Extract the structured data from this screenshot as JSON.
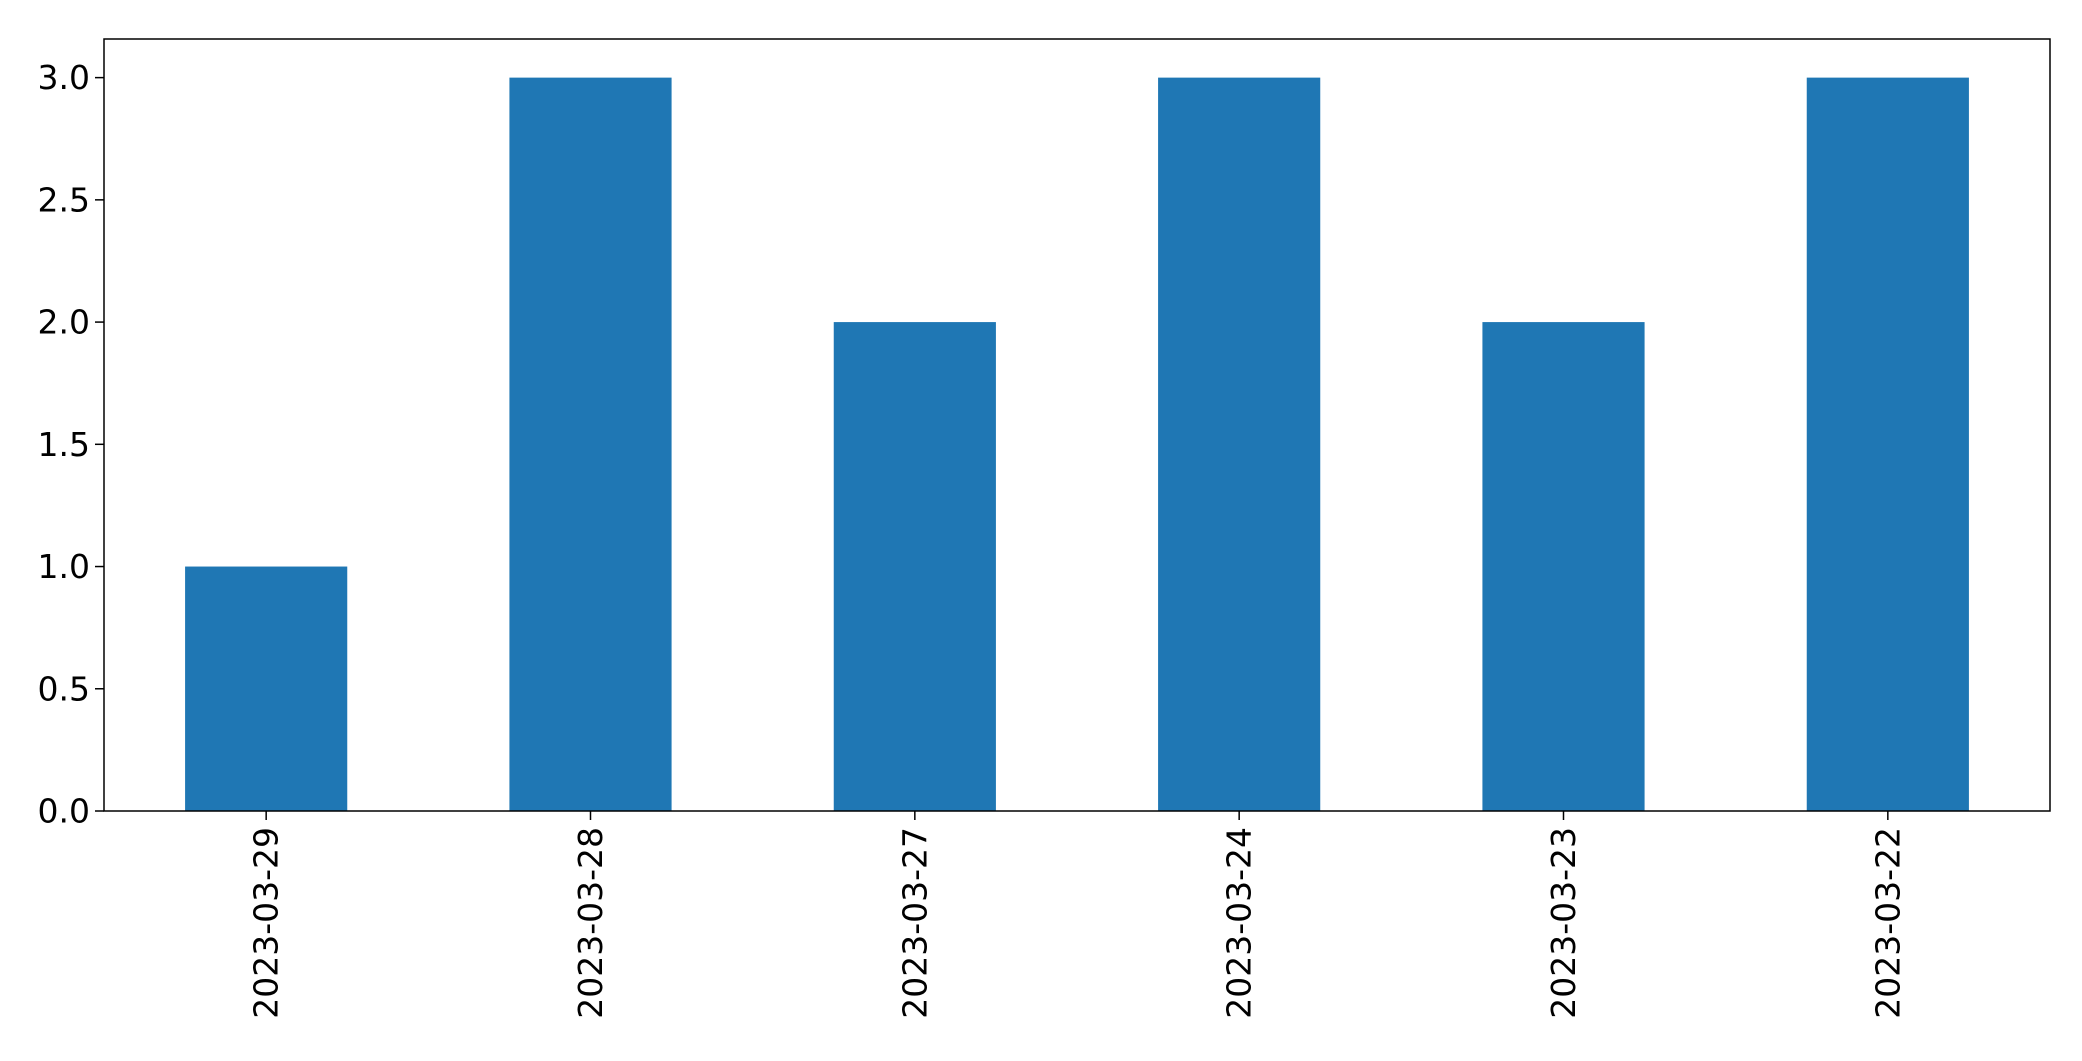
{
  "chart_data": {
    "type": "bar",
    "categories": [
      "2023-03-29",
      "2023-03-28",
      "2023-03-27",
      "2023-03-24",
      "2023-03-23",
      "2023-03-22"
    ],
    "values": [
      1,
      3,
      2,
      3,
      2,
      3
    ],
    "title": "",
    "xlabel": "",
    "ylabel": "",
    "ylim": [
      0,
      3.158
    ],
    "yticks": [
      "0.0",
      "0.5",
      "1.0",
      "1.5",
      "2.0",
      "2.5",
      "3.0"
    ],
    "bar_color": "#1f77b4",
    "grid": false,
    "legend": "none"
  }
}
